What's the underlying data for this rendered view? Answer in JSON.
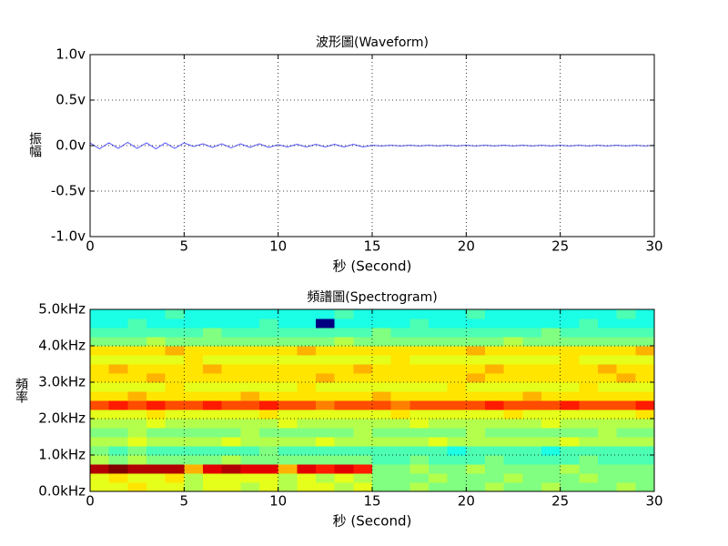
{
  "chart_data": [
    {
      "type": "line",
      "title": "波形圖(Waveform)",
      "x_label": "秒 (Second)",
      "y_label": "振幅",
      "xlim": [
        0,
        30
      ],
      "xticks": [
        0,
        5,
        10,
        15,
        20,
        25,
        30
      ],
      "ylim": [
        -1,
        1
      ],
      "yticks": [
        {
          "value": -1,
          "label": "-1.0v"
        },
        {
          "value": -0.5,
          "label": "-0.5v"
        },
        {
          "value": 0,
          "label": "0.0v"
        },
        {
          "value": 0.5,
          "label": "0.5v"
        },
        {
          "value": 1,
          "label": "1.0v"
        }
      ],
      "grid": true,
      "x": [
        0,
        0.5,
        1,
        1.5,
        2,
        2.5,
        3,
        3.5,
        4,
        4.5,
        5,
        5.5,
        6,
        6.5,
        7,
        7.5,
        8,
        8.5,
        9,
        9.5,
        10,
        10.5,
        11,
        11.5,
        12,
        12.5,
        13,
        13.5,
        14,
        14.5,
        15,
        15.5,
        16,
        16.5,
        17,
        17.5,
        18,
        18.5,
        19,
        19.5,
        20,
        20.5,
        21,
        21.5,
        22,
        22.5,
        23,
        23.5,
        24,
        24.5,
        25,
        25.5,
        26,
        26.5,
        27,
        27.5,
        28,
        28.5,
        29,
        29.5,
        30
      ],
      "series": [
        {
          "color": "#5555ff",
          "values": [
            0.03,
            -0.035,
            0.03,
            -0.03,
            0.035,
            -0.03,
            0.03,
            -0.035,
            0.03,
            -0.03,
            0.03,
            -0.01,
            0.02,
            -0.02,
            0.02,
            -0.025,
            0.02,
            -0.02,
            0.02,
            -0.02,
            0.01,
            -0.015,
            0.015,
            -0.015,
            0.015,
            -0.015,
            0.015,
            -0.015,
            0.015,
            -0.015,
            0.004,
            -0.004,
            0.004,
            -0.004,
            0.004,
            -0.004,
            0.004,
            -0.004,
            0.004,
            -0.004,
            0.004,
            -0.004,
            0.004,
            -0.004,
            0.004,
            -0.004,
            0.004,
            -0.004,
            0.004,
            -0.004,
            0.004,
            -0.004,
            0.004,
            -0.004,
            0.004,
            -0.004,
            0.004,
            -0.004,
            0.004,
            -0.004,
            0.004
          ]
        }
      ]
    },
    {
      "type": "heatmap",
      "title": "頻譜圖(Spectrogram)",
      "x_label": "秒 (Second)",
      "y_label": "頻率",
      "xlim": [
        0,
        30
      ],
      "xticks": [
        0,
        5,
        10,
        15,
        20,
        25,
        30
      ],
      "ylim": [
        0,
        5000
      ],
      "yticks": [
        {
          "value": 0,
          "label": "0.0kHz"
        },
        {
          "value": 1000,
          "label": "1.0kHz"
        },
        {
          "value": 2000,
          "label": "2.0kHz"
        },
        {
          "value": 3000,
          "label": "3.0kHz"
        },
        {
          "value": 4000,
          "label": "4.0kHz"
        },
        {
          "value": 5000,
          "label": "5.0kHz"
        }
      ],
      "grid": true,
      "colormap": "jet",
      "x_bins": [
        0,
        1,
        2,
        3,
        4,
        5,
        6,
        7,
        8,
        9,
        10,
        11,
        12,
        13,
        14,
        15,
        16,
        17,
        18,
        19,
        20,
        21,
        22,
        23,
        24,
        25,
        26,
        27,
        28,
        29,
        30
      ],
      "y_bins": [
        0,
        250,
        500,
        750,
        1000,
        1250,
        1500,
        1750,
        2000,
        2250,
        2500,
        2750,
        3000,
        3250,
        3500,
        3750,
        4000,
        4250,
        4500,
        4750,
        5000
      ],
      "values": [
        [
          6,
          6,
          6.5,
          6,
          6,
          5.5,
          6,
          6,
          5.5,
          6,
          5.5,
          6,
          6,
          5.5,
          6,
          5,
          5,
          5.5,
          5,
          5,
          5,
          5.5,
          5,
          5,
          5.5,
          5,
          5,
          5,
          5.5,
          5
        ],
        [
          6,
          6.5,
          6,
          6,
          6.5,
          5.5,
          6,
          6,
          6,
          6,
          5.5,
          6,
          5.5,
          6,
          5.5,
          5,
          5,
          5,
          5.5,
          5,
          5,
          5,
          5.5,
          5,
          5,
          5,
          5.5,
          5,
          5,
          5
        ],
        [
          9.5,
          10,
          9.5,
          9.5,
          9.5,
          7,
          9,
          9.5,
          9,
          9,
          7,
          9,
          8.5,
          9,
          8.5,
          5,
          5,
          5.5,
          5,
          5,
          5.5,
          5,
          5,
          5,
          5,
          5.5,
          5,
          5,
          5,
          5
        ],
        [
          5.5,
          5,
          5.5,
          5,
          5,
          5,
          5,
          5.5,
          5,
          5,
          5,
          5,
          5,
          5,
          5,
          4.5,
          4.5,
          5,
          4.5,
          4.5,
          4.5,
          5,
          4.5,
          4.5,
          4.5,
          4.5,
          5,
          4.5,
          4.5,
          4.5
        ],
        [
          5,
          4.5,
          5,
          4.5,
          4.5,
          4.5,
          4.5,
          4.5,
          4.5,
          5,
          4.5,
          4.5,
          4.5,
          4.5,
          4.5,
          4.5,
          4.5,
          4.5,
          4.5,
          4,
          4.5,
          4.5,
          4.5,
          4.5,
          4,
          4.5,
          4.5,
          4.5,
          4.5,
          4.5
        ],
        [
          5.5,
          5.5,
          6,
          5.5,
          5.5,
          5.5,
          5.5,
          6,
          5.5,
          5.5,
          5.5,
          5.5,
          6,
          5.5,
          5.5,
          5.5,
          5.5,
          5.5,
          6,
          5.5,
          5.5,
          5.5,
          5.5,
          5.5,
          5.5,
          6,
          5.5,
          5.5,
          5.5,
          5.5
        ],
        [
          5,
          5,
          5.5,
          5,
          5,
          5,
          5,
          5,
          5.5,
          5,
          5,
          5,
          5,
          5,
          5.5,
          5,
          5,
          5,
          5,
          5,
          5.5,
          5,
          5,
          5,
          5,
          5,
          5,
          5.5,
          5,
          5
        ],
        [
          5.5,
          5.5,
          5.5,
          6,
          5.5,
          5.5,
          5.5,
          5.5,
          5.5,
          5.5,
          6,
          5.5,
          5.5,
          5.5,
          5.5,
          5.5,
          5.5,
          6,
          5.5,
          5.5,
          5.5,
          5.5,
          5.5,
          5.5,
          6,
          5.5,
          5.5,
          5.5,
          5.5,
          5.5
        ],
        [
          6,
          6,
          6,
          6.5,
          6,
          6,
          6,
          6,
          6,
          6.5,
          6,
          6,
          6,
          6,
          6,
          6,
          6.5,
          6,
          6,
          6,
          6,
          6,
          6.5,
          6,
          6,
          6,
          6,
          6,
          6,
          6.5
        ],
        [
          8,
          8.5,
          8,
          8.5,
          8,
          8,
          8.5,
          8,
          8,
          8.5,
          8,
          8,
          7.5,
          8,
          8,
          8,
          7.5,
          8,
          8,
          8,
          8,
          8.5,
          8,
          8,
          8,
          8.5,
          8,
          8,
          8,
          8.5
        ],
        [
          6.5,
          6.5,
          7,
          6.5,
          6.5,
          6.5,
          6.5,
          6.5,
          7,
          6.5,
          6.5,
          6.5,
          6.5,
          6.5,
          6.5,
          7,
          6.5,
          6.5,
          6.5,
          6.5,
          6.5,
          6.5,
          6.5,
          7,
          6.5,
          6.5,
          6.5,
          6.5,
          6.5,
          6.5
        ],
        [
          6,
          6,
          6,
          6,
          6.5,
          6,
          6,
          6,
          6,
          6,
          6,
          6.5,
          6,
          6,
          6,
          6,
          6,
          6,
          6,
          6.5,
          6,
          6,
          6,
          6,
          6,
          6,
          6.5,
          6,
          6,
          6
        ],
        [
          6.5,
          6.5,
          6.5,
          7,
          6.5,
          6.5,
          6.5,
          6.5,
          6.5,
          6.5,
          6.5,
          6.5,
          7,
          6.5,
          6.5,
          6.5,
          6.5,
          6.5,
          6.5,
          6.5,
          7,
          6.5,
          6.5,
          6.5,
          6.5,
          6.5,
          6.5,
          6.5,
          7,
          6.5
        ],
        [
          6.5,
          7,
          6.5,
          6.5,
          6.5,
          6.5,
          7,
          6.5,
          6.5,
          6.5,
          6.5,
          6.5,
          6.5,
          6.5,
          7,
          6.5,
          6.5,
          6.5,
          6.5,
          6.5,
          6.5,
          7,
          6.5,
          6.5,
          6.5,
          6.5,
          6.5,
          7,
          6.5,
          6.5
        ],
        [
          6,
          6,
          6,
          6,
          6,
          6.5,
          6,
          6,
          6,
          6,
          6,
          6,
          6,
          6,
          6,
          6,
          6.5,
          6,
          6,
          6,
          6,
          6,
          6,
          6,
          6,
          6.5,
          6,
          6,
          6,
          6
        ],
        [
          6.5,
          6.5,
          6.5,
          6.5,
          7,
          6.5,
          6.5,
          6.5,
          6.5,
          6.5,
          6.5,
          7,
          6.5,
          6.5,
          6.5,
          6.5,
          6.5,
          6.5,
          6.5,
          6.5,
          7,
          6.5,
          6.5,
          6.5,
          6.5,
          6.5,
          6.5,
          6.5,
          6.5,
          7
        ],
        [
          5,
          5,
          5,
          5.5,
          5,
          5,
          5,
          5,
          5,
          5,
          5,
          5,
          5,
          5.5,
          5,
          5,
          5,
          5,
          5,
          5,
          5,
          5,
          5.5,
          5,
          5,
          5,
          5,
          5,
          5,
          5
        ],
        [
          4.5,
          4.5,
          4.5,
          4.5,
          4.5,
          4.5,
          5,
          4.5,
          4.5,
          4.5,
          4.5,
          4.5,
          4.5,
          4.5,
          4.5,
          5,
          4.5,
          4.5,
          4.5,
          4.5,
          4.5,
          4.5,
          4.5,
          4.5,
          5,
          4.5,
          4.5,
          4.5,
          4.5,
          4.5
        ],
        [
          4,
          4,
          4.5,
          4,
          4,
          4,
          4,
          4,
          4,
          4.5,
          4,
          4,
          0,
          4,
          4,
          4,
          4,
          4.5,
          4,
          4,
          4,
          4,
          4,
          4,
          4,
          4,
          4.5,
          4,
          4,
          4
        ],
        [
          4,
          4,
          4,
          4,
          4.5,
          4,
          4,
          4,
          4,
          4,
          4,
          4,
          4,
          4.5,
          4,
          4,
          4,
          4,
          4,
          4,
          4.5,
          4,
          4,
          4,
          4,
          4,
          4,
          4,
          4.5,
          4
        ]
      ]
    }
  ]
}
